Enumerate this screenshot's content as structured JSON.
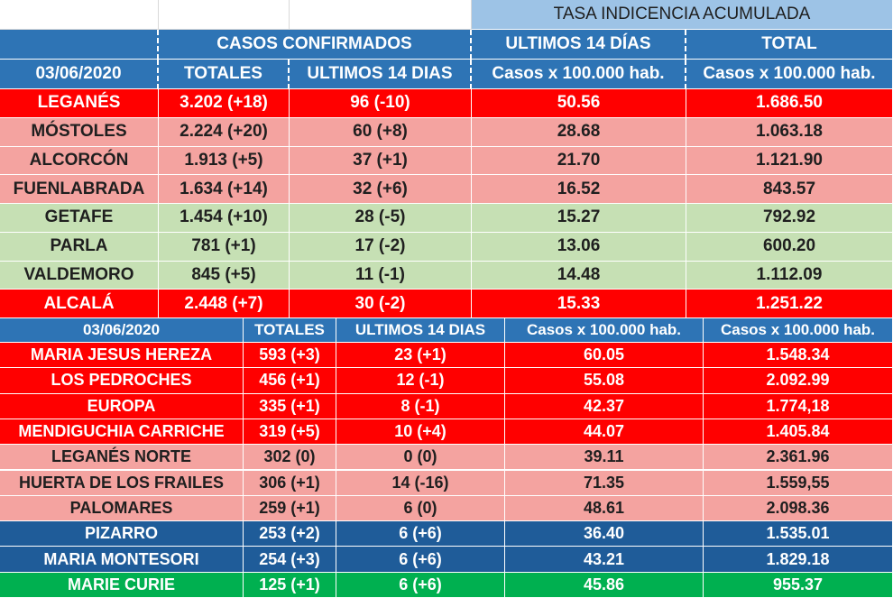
{
  "top_header": {
    "title": "TASA INDICENCIA  ACUMULADA",
    "casos_confirmados": "CASOS  CONFIRMADOS",
    "ultimos_14": "ULTIMOS 14 DÍAS",
    "total": "TOTAL",
    "date": "03/06/2020",
    "totales": "TOTALES",
    "ultimos_14_dias": "ULTIMOS 14 DIAS",
    "casos_x_100k_a": "Casos x 100.000 hab.",
    "casos_x_100k_b": "Casos x 100.000 hab."
  },
  "municipalities": [
    {
      "name": "LEGANÉS",
      "totales": "3.202 (+18)",
      "ultimos": "96 (-10)",
      "tasa14": "50.56",
      "total": "1.686.50",
      "color": "red"
    },
    {
      "name": "MÓSTOLES",
      "totales": "2.224 (+20)",
      "ultimos": "60 (+8)",
      "tasa14": "28.68",
      "total": "1.063.18",
      "color": "pink"
    },
    {
      "name": "ALCORCÓN",
      "totales": "1.913 (+5)",
      "ultimos": "37 (+1)",
      "tasa14": "21.70",
      "total": "1.121.90",
      "color": "pink"
    },
    {
      "name": "FUENLABRADA",
      "totales": "1.634 (+14)",
      "ultimos": "32 (+6)",
      "tasa14": "16.52",
      "total": "843.57",
      "color": "pink"
    },
    {
      "name": "GETAFE",
      "totales": "1.454 (+10)",
      "ultimos": "28 (-5)",
      "tasa14": "15.27",
      "total": "792.92",
      "color": "green"
    },
    {
      "name": "PARLA",
      "totales": "781 (+1)",
      "ultimos": "17 (-2)",
      "tasa14": "13.06",
      "total": "600.20",
      "color": "green"
    },
    {
      "name": "VALDEMORO",
      "totales": "845 (+5)",
      "ultimos": "11 (-1)",
      "tasa14": "14.48",
      "total": "1.112.09",
      "color": "green"
    },
    {
      "name": "ALCALÁ",
      "totales": "2.448 (+7)",
      "ultimos": "30 (-2)",
      "tasa14": "15.33",
      "total": "1.251.22",
      "color": "red"
    }
  ],
  "bottom_header": {
    "date": "03/06/2020",
    "totales": "TOTALES",
    "ultimos_14_dias": "ULTIMOS 14 DIAS",
    "casos_x_100k_a": "Casos x 100.000 hab.",
    "casos_x_100k_b": "Casos x 100.000 hab."
  },
  "health_centers": [
    {
      "name": "MARIA JESUS HEREZA",
      "totales": "593 (+3)",
      "ultimos": "23 (+1)",
      "tasa14": "60.05",
      "total": "1.548.34",
      "color": "red"
    },
    {
      "name": "LOS PEDROCHES",
      "totales": "456 (+1)",
      "ultimos": "12 (-1)",
      "tasa14": "55.08",
      "total": "2.092.99",
      "color": "red"
    },
    {
      "name": "EUROPA",
      "totales": "335 (+1)",
      "ultimos": "8 (-1)",
      "tasa14": "42.37",
      "total": "1.774,18",
      "color": "red"
    },
    {
      "name": "MENDIGUCHIA CARRICHE",
      "totales": "319 (+5)",
      "ultimos": "10 (+4)",
      "tasa14": "44.07",
      "total": "1.405.84",
      "color": "red"
    },
    {
      "name": "LEGANÉS NORTE",
      "totales": "302 (0)",
      "ultimos": "0 (0)",
      "tasa14": "39.11",
      "total": "2.361.96",
      "color": "pink"
    },
    {
      "name": "HUERTA DE LOS FRAILES",
      "totales": "306 (+1)",
      "ultimos": "14 (-16)",
      "tasa14": "71.35",
      "total": "1.559,55",
      "color": "pink"
    },
    {
      "name": "PALOMARES",
      "totales": "259 (+1)",
      "ultimos": "6 (0)",
      "tasa14": "48.61",
      "total": "2.098.36",
      "color": "pink"
    },
    {
      "name": "PIZARRO",
      "totales": "253 (+2)",
      "ultimos": "6 (+6)",
      "tasa14": "36.40",
      "total": "1.535.01",
      "color": "navy"
    },
    {
      "name": "MARIA MONTESORI",
      "totales": "254 (+3)",
      "ultimos": "6 (+6)",
      "tasa14": "43.21",
      "total": "1.829.18",
      "color": "navy"
    },
    {
      "name": "MARIE CURIE",
      "totales": "125 (+1)",
      "ultimos": "6 (+6)",
      "tasa14": "45.86",
      "total": "955.37",
      "color": "bright"
    }
  ]
}
